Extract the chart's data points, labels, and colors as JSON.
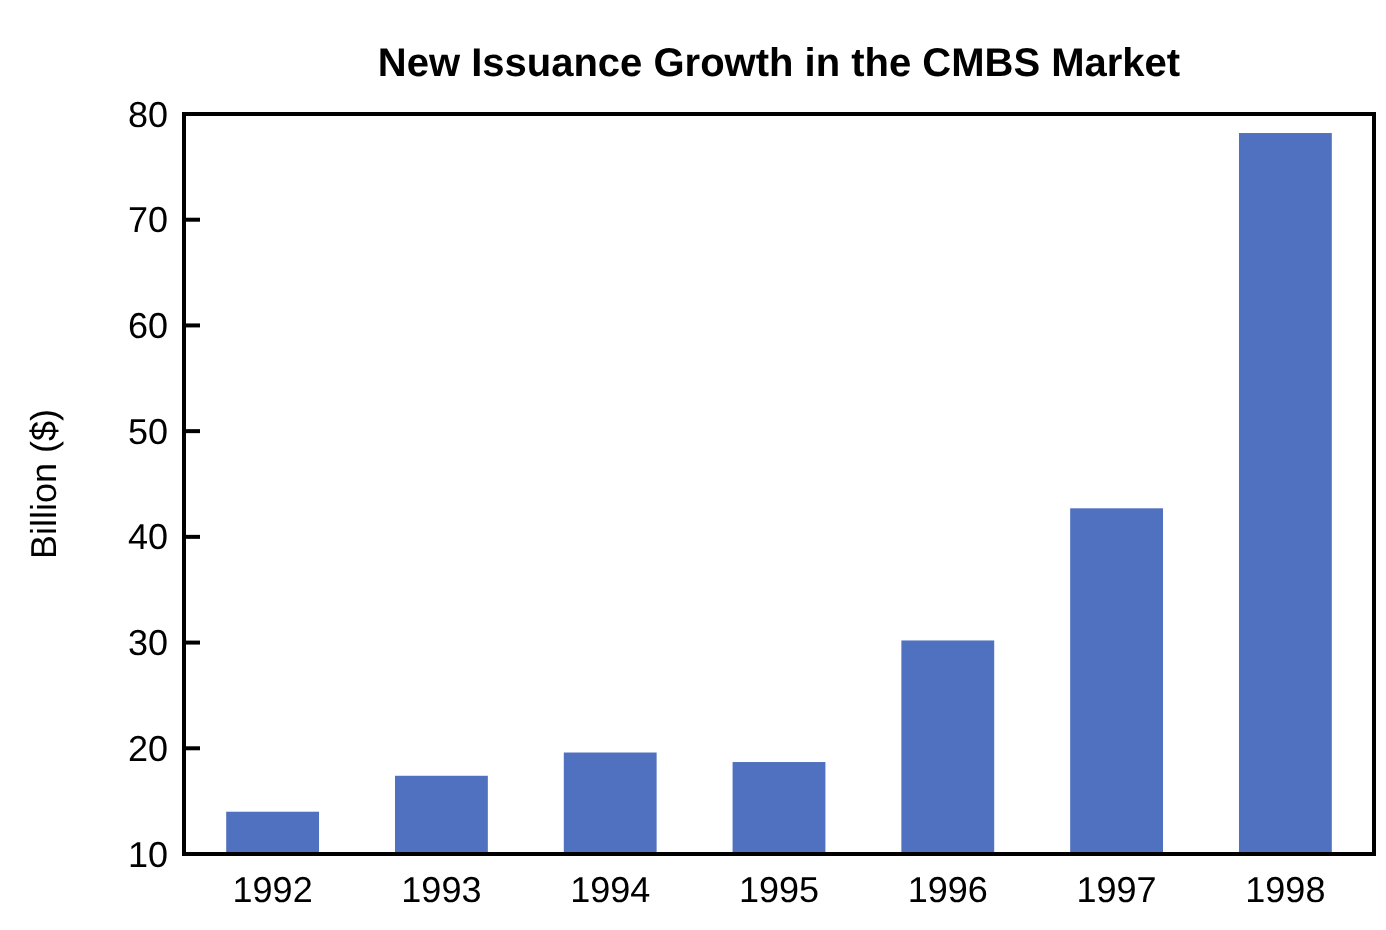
{
  "chart_data": {
    "type": "bar",
    "title": "New Issuance Growth in the CMBS Market",
    "ylabel": "Billion ($)",
    "categories": [
      "1992",
      "1993",
      "1994",
      "1995",
      "1996",
      "1997",
      "1998"
    ],
    "values": [
      14,
      17.4,
      19.6,
      18.7,
      30.2,
      42.7,
      78.2
    ],
    "color": "#5070c0",
    "ylim": [
      10,
      80
    ],
    "yticks": [
      10,
      20,
      30,
      40,
      50,
      60,
      70,
      80
    ],
    "grid": false
  }
}
